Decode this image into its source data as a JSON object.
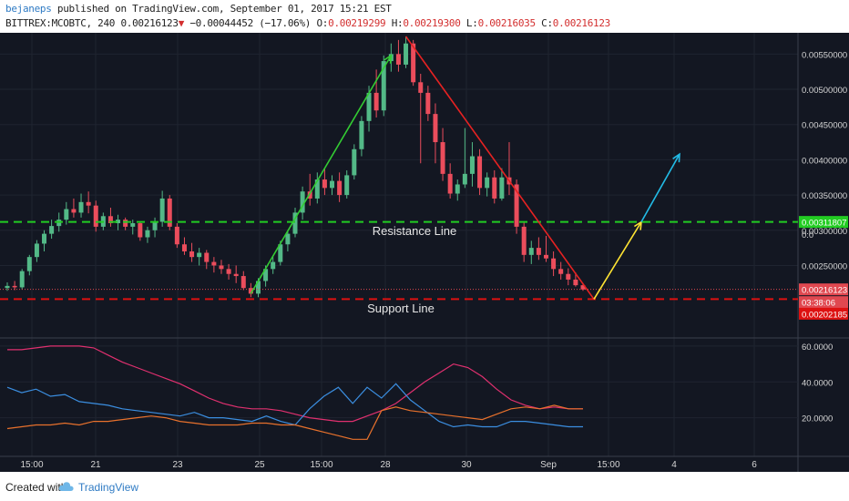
{
  "header": {
    "author": "bejaneps",
    "published": " published on TradingView.com, September 01, 2017 15:21 EST",
    "symbol": "BITTREX:MCOBTC, 240",
    "last": "0.00216123",
    "arrow": "▼",
    "change": "−0.00044452 (−17.06%)",
    "o_label": "O:",
    "o_value": "0.00219299",
    "h_label": "H:",
    "h_value": "0.00219300",
    "l_label": "L:",
    "l_value": "0.00216035",
    "c_label": "C:",
    "c_value": "0.00216123"
  },
  "colors": {
    "background": "#131722",
    "up": "#53b987",
    "down": "#eb4d5c",
    "resistance": "#22cc22",
    "support": "#dd1111",
    "trend_up": "#33cc33",
    "trend_down": "#e62222",
    "forecast_yellow": "#ffe433",
    "forecast_cyan": "#22bbe6",
    "osc_pink": "#e0306f",
    "osc_blue": "#3b8ee0",
    "osc_orange": "#e8712c"
  },
  "chart_data": {
    "type": "candlestick",
    "price_axis": {
      "ticks": [
        "0.00550000",
        "0.00500000",
        "0.00450000",
        "0.00400000",
        "0.00350000",
        "0.00300000",
        "0.00250000"
      ],
      "ylim": [
        0.00195,
        0.00575
      ]
    },
    "time_axis": {
      "ticks": [
        "15:00",
        "21",
        "23",
        "25",
        "15:00",
        "28",
        "30",
        "Sep",
        "15:00",
        "4",
        "6"
      ]
    },
    "price_labels": {
      "resistance": "0.00311807",
      "last": "0.00216123",
      "countdown": "03:38:06",
      "support": "0.00202185",
      "hidden": "0.0"
    },
    "annotations": {
      "resistance": "Resistance Line",
      "support": "Support Line"
    },
    "levels": {
      "resistance": 0.003118,
      "support": 0.002022,
      "last": 0.002161
    },
    "candles": [
      [
        0.00218,
        0.00226,
        0.00214,
        0.00221
      ],
      [
        0.00221,
        0.00228,
        0.00215,
        0.00219
      ],
      [
        0.00219,
        0.00245,
        0.00216,
        0.00242
      ],
      [
        0.00242,
        0.00265,
        0.00236,
        0.00262
      ],
      [
        0.00262,
        0.00286,
        0.00255,
        0.00281
      ],
      [
        0.00281,
        0.003,
        0.0027,
        0.00295
      ],
      [
        0.00295,
        0.00315,
        0.00288,
        0.00306
      ],
      [
        0.00306,
        0.00325,
        0.00298,
        0.00315
      ],
      [
        0.00315,
        0.0034,
        0.00308,
        0.0033
      ],
      [
        0.0033,
        0.00345,
        0.00318,
        0.00325
      ],
      [
        0.00325,
        0.00352,
        0.00318,
        0.0034
      ],
      [
        0.0034,
        0.00355,
        0.00324,
        0.00335
      ],
      [
        0.00335,
        0.00342,
        0.00298,
        0.00305
      ],
      [
        0.00305,
        0.00325,
        0.003,
        0.0032
      ],
      [
        0.0032,
        0.00332,
        0.00305,
        0.0031
      ],
      [
        0.0031,
        0.00322,
        0.003,
        0.00315
      ],
      [
        0.00315,
        0.00318,
        0.003,
        0.00305
      ],
      [
        0.00305,
        0.00315,
        0.00294,
        0.0031
      ],
      [
        0.0031,
        0.00312,
        0.00285,
        0.0029
      ],
      [
        0.0029,
        0.00305,
        0.00282,
        0.003
      ],
      [
        0.003,
        0.00318,
        0.0029,
        0.00312
      ],
      [
        0.00312,
        0.00356,
        0.00305,
        0.00345
      ],
      [
        0.00345,
        0.0035,
        0.003,
        0.00305
      ],
      [
        0.00305,
        0.0031,
        0.00275,
        0.0028
      ],
      [
        0.0028,
        0.0029,
        0.00265,
        0.0027
      ],
      [
        0.0027,
        0.00282,
        0.00255,
        0.00262
      ],
      [
        0.00262,
        0.00275,
        0.0025,
        0.00268
      ],
      [
        0.00268,
        0.00272,
        0.00245,
        0.00255
      ],
      [
        0.00255,
        0.00262,
        0.0024,
        0.0025
      ],
      [
        0.0025,
        0.00258,
        0.00238,
        0.00245
      ],
      [
        0.00245,
        0.00252,
        0.0023,
        0.00238
      ],
      [
        0.00238,
        0.0025,
        0.00225,
        0.00235
      ],
      [
        0.00235,
        0.00242,
        0.00215,
        0.00218
      ],
      [
        0.00218,
        0.00225,
        0.00205,
        0.0021
      ],
      [
        0.0021,
        0.00232,
        0.00205,
        0.00228
      ],
      [
        0.00228,
        0.0025,
        0.0022,
        0.00245
      ],
      [
        0.00245,
        0.00262,
        0.00238,
        0.00255
      ],
      [
        0.00255,
        0.00285,
        0.0025,
        0.0028
      ],
      [
        0.0028,
        0.003,
        0.0027,
        0.00295
      ],
      [
        0.00295,
        0.00332,
        0.0029,
        0.00325
      ],
      [
        0.00325,
        0.00362,
        0.00315,
        0.00355
      ],
      [
        0.00355,
        0.0038,
        0.00335,
        0.00345
      ],
      [
        0.00345,
        0.00382,
        0.00338,
        0.00372
      ],
      [
        0.00372,
        0.00388,
        0.0035,
        0.0036
      ],
      [
        0.0036,
        0.00378,
        0.0035,
        0.0037
      ],
      [
        0.0037,
        0.00382,
        0.0034,
        0.0035
      ],
      [
        0.0035,
        0.00385,
        0.00345,
        0.00378
      ],
      [
        0.00378,
        0.00422,
        0.00372,
        0.00415
      ],
      [
        0.00415,
        0.00462,
        0.00405,
        0.00455
      ],
      [
        0.00455,
        0.00505,
        0.0044,
        0.00495
      ],
      [
        0.00495,
        0.00528,
        0.0046,
        0.0047
      ],
      [
        0.0047,
        0.00548,
        0.00462,
        0.0054
      ],
      [
        0.0054,
        0.00565,
        0.00525,
        0.0055
      ],
      [
        0.0055,
        0.0057,
        0.00525,
        0.00535
      ],
      [
        0.00535,
        0.00575,
        0.0053,
        0.00565
      ],
      [
        0.00565,
        0.0057,
        0.00505,
        0.0051
      ],
      [
        0.0051,
        0.00522,
        0.00395,
        0.00495
      ],
      [
        0.00495,
        0.00505,
        0.00455,
        0.00465
      ],
      [
        0.00465,
        0.0048,
        0.00395,
        0.00425
      ],
      [
        0.00425,
        0.00445,
        0.0037,
        0.0038
      ],
      [
        0.0038,
        0.00395,
        0.00345,
        0.00352
      ],
      [
        0.00352,
        0.00372,
        0.00342,
        0.00365
      ],
      [
        0.00365,
        0.00445,
        0.0036,
        0.0038
      ],
      [
        0.0038,
        0.00425,
        0.00362,
        0.00405
      ],
      [
        0.00405,
        0.00415,
        0.0035,
        0.0036
      ],
      [
        0.0036,
        0.00382,
        0.00348,
        0.00375
      ],
      [
        0.00375,
        0.00385,
        0.00338,
        0.00345
      ],
      [
        0.00345,
        0.00388,
        0.00342,
        0.00375
      ],
      [
        0.00375,
        0.00425,
        0.0035,
        0.00365
      ],
      [
        0.00365,
        0.00372,
        0.00295,
        0.00305
      ],
      [
        0.00305,
        0.00312,
        0.00255,
        0.00265
      ],
      [
        0.00265,
        0.00285,
        0.00252,
        0.00275
      ],
      [
        0.00275,
        0.0029,
        0.00258,
        0.00265
      ],
      [
        0.00265,
        0.00292,
        0.00255,
        0.0026
      ],
      [
        0.0026,
        0.0027,
        0.00235,
        0.00245
      ],
      [
        0.00245,
        0.00255,
        0.0023,
        0.00238
      ],
      [
        0.00238,
        0.00246,
        0.00222,
        0.0023
      ],
      [
        0.0023,
        0.0024,
        0.0022,
        0.00222
      ],
      [
        0.00222,
        0.00225,
        0.00214,
        0.00216
      ]
    ],
    "oscillator": {
      "axis_ticks": [
        "60.0000",
        "40.0000",
        "20.0000"
      ],
      "ylim": [
        0,
        62
      ],
      "series": [
        {
          "color": "pink",
          "values": [
            58,
            58,
            59,
            60,
            60,
            60,
            59,
            55,
            51,
            48,
            45,
            42,
            39,
            35,
            31,
            28,
            26,
            25,
            25,
            24,
            22,
            20,
            19,
            18,
            18,
            21,
            24,
            28,
            34,
            40,
            45,
            50,
            48,
            43,
            36,
            30,
            27,
            25,
            26,
            25,
            25
          ]
        },
        {
          "color": "blue",
          "values": [
            37,
            34,
            36,
            32,
            33,
            29,
            28,
            27,
            25,
            24,
            23,
            22,
            21,
            23,
            20,
            20,
            19,
            18,
            21,
            18,
            16,
            25,
            32,
            37,
            28,
            37,
            31,
            39,
            30,
            24,
            18,
            15,
            16,
            15,
            15,
            18,
            18,
            17,
            16,
            15,
            15
          ]
        },
        {
          "color": "orange",
          "values": [
            14,
            15,
            16,
            16,
            17,
            16,
            18,
            18,
            19,
            20,
            21,
            20,
            18,
            17,
            16,
            16,
            16,
            17,
            17,
            16,
            16,
            14,
            12,
            10,
            8,
            8,
            24,
            26,
            24,
            23,
            22,
            21,
            20,
            19,
            22,
            25,
            26,
            25,
            27,
            25,
            25
          ]
        }
      ]
    }
  },
  "footer": {
    "created_with": "Created with",
    "brand": "TradingView"
  }
}
